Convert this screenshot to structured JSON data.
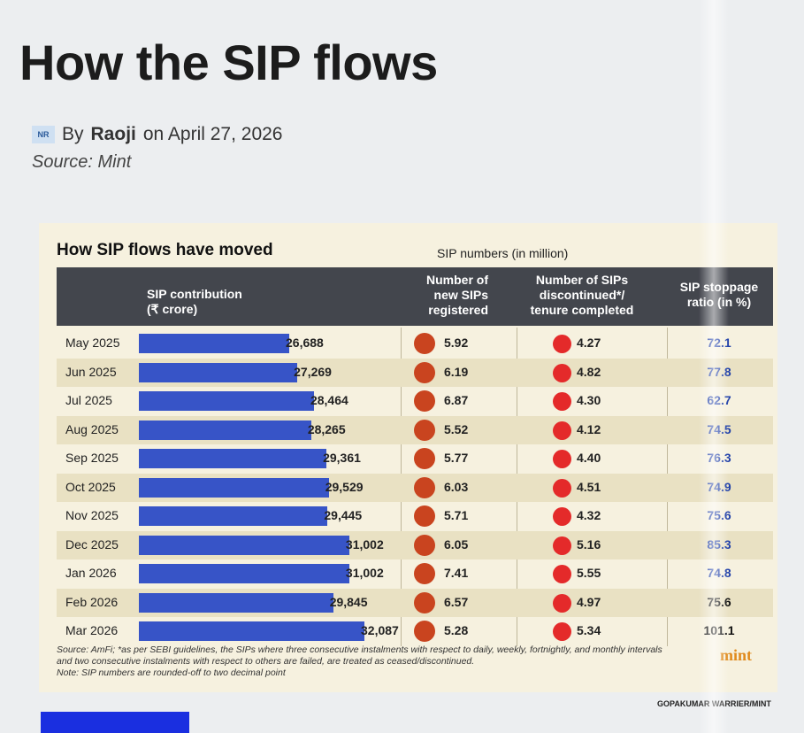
{
  "article": {
    "headline": "How the SIP flows",
    "avatar_text": "NR",
    "by": "By",
    "author": "Raoji",
    "date_text": "on April 27, 2026",
    "source": "Source: Mint"
  },
  "chart_data": {
    "type": "table",
    "title": "How SIP flows have moved",
    "subtitle": "SIP numbers (in million)",
    "columns": {
      "contribution": "SIP contribution\n(₹ crore)",
      "new": "Number of\nnew SIPs\nregistered",
      "discontinued": "Number of SIPs\ndiscontinued*/\ntenure completed",
      "ratio": "SIP stoppage\nratio (in %)"
    },
    "rows": [
      {
        "month": "May 2025",
        "contribution": 26688,
        "contribution_label": "26,688",
        "new": "5.92",
        "discontinued": "4.27",
        "ratio": "72.1"
      },
      {
        "month": "Jun 2025",
        "contribution": 27269,
        "contribution_label": "27,269",
        "new": "6.19",
        "discontinued": "4.82",
        "ratio": "77.8"
      },
      {
        "month": "Jul 2025",
        "contribution": 28464,
        "contribution_label": "28,464",
        "new": "6.87",
        "discontinued": "4.30",
        "ratio": "62.7"
      },
      {
        "month": "Aug 2025",
        "contribution": 28265,
        "contribution_label": "28,265",
        "new": "5.52",
        "discontinued": "4.12",
        "ratio": "74.5"
      },
      {
        "month": "Sep 2025",
        "contribution": 29361,
        "contribution_label": "29,361",
        "new": "5.77",
        "discontinued": "4.40",
        "ratio": "76.3"
      },
      {
        "month": "Oct 2025",
        "contribution": 29529,
        "contribution_label": "29,529",
        "new": "6.03",
        "discontinued": "4.51",
        "ratio": "74.9"
      },
      {
        "month": "Nov 2025",
        "contribution": 29445,
        "contribution_label": "29,445",
        "new": "5.71",
        "discontinued": "4.32",
        "ratio": "75.6"
      },
      {
        "month": "Dec 2025",
        "contribution": 31002,
        "contribution_label": "31,002",
        "new": "6.05",
        "discontinued": "5.16",
        "ratio": "85.3"
      },
      {
        "month": "Jan 2026",
        "contribution": 31002,
        "contribution_label": "31,002",
        "new": "7.41",
        "discontinued": "5.55",
        "ratio": "74.8"
      },
      {
        "month": "Feb 2026",
        "contribution": 29845,
        "contribution_label": "29,845",
        "new": "6.57",
        "discontinued": "4.97",
        "ratio": "75.6"
      },
      {
        "month": "Mar 2026",
        "contribution": 32087,
        "contribution_label": "32,087",
        "new": "5.28",
        "discontinued": "5.34",
        "ratio": "101.1"
      }
    ],
    "footnote": "Source: AmFi; *as per SEBI guidelines, the SIPs where three consecutive instalments with respect to daily, weekly, fortnightly, and monthly intervals and two consecutive instalments with respect to others are failed, are treated as ceased/discontinued.",
    "note": "Note: SIP numbers are rounded-off to two decimal point",
    "brand": "mint",
    "credit": "GOPAKUMAR WARRIER/MINT",
    "colors": {
      "bar": "#3754c7",
      "new_dot": "#c9441f",
      "discontinued_dot": "#e42a2a",
      "ratio_text": "#1f3fa8",
      "header_bg": "#43464d",
      "card_bg": "#f6f1df"
    }
  }
}
